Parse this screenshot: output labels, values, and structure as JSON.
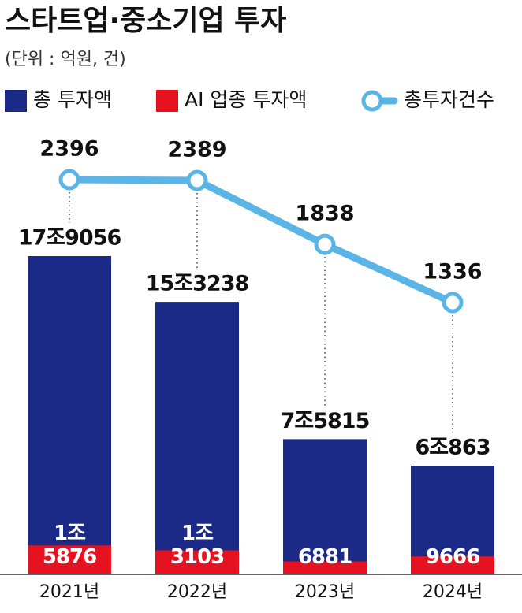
{
  "chart_data": {
    "type": "bar",
    "title": "스타트업·중소기업 투자",
    "subtitle": "(단위 : 억원, 건)",
    "categories": [
      "2021년",
      "2022년",
      "2023년",
      "2024년"
    ],
    "series": [
      {
        "name": "총 투자액",
        "type": "bar",
        "color": "#1b2a86",
        "values": [
          179056,
          153238,
          75815,
          60863
        ],
        "value_labels": [
          "17조9056",
          "15조3238",
          "7조5815",
          "6조863"
        ]
      },
      {
        "name": "AI 업종 투자액",
        "type": "bar",
        "color": "#e6121f",
        "values": [
          15876,
          13103,
          6881,
          9666
        ],
        "value_labels": [
          "1조\n5876",
          "1조\n3103",
          "6881",
          "9666"
        ]
      },
      {
        "name": "총투자건수",
        "type": "line",
        "color": "#5ab4e5",
        "values": [
          2396,
          2389,
          1838,
          1336
        ]
      }
    ]
  }
}
